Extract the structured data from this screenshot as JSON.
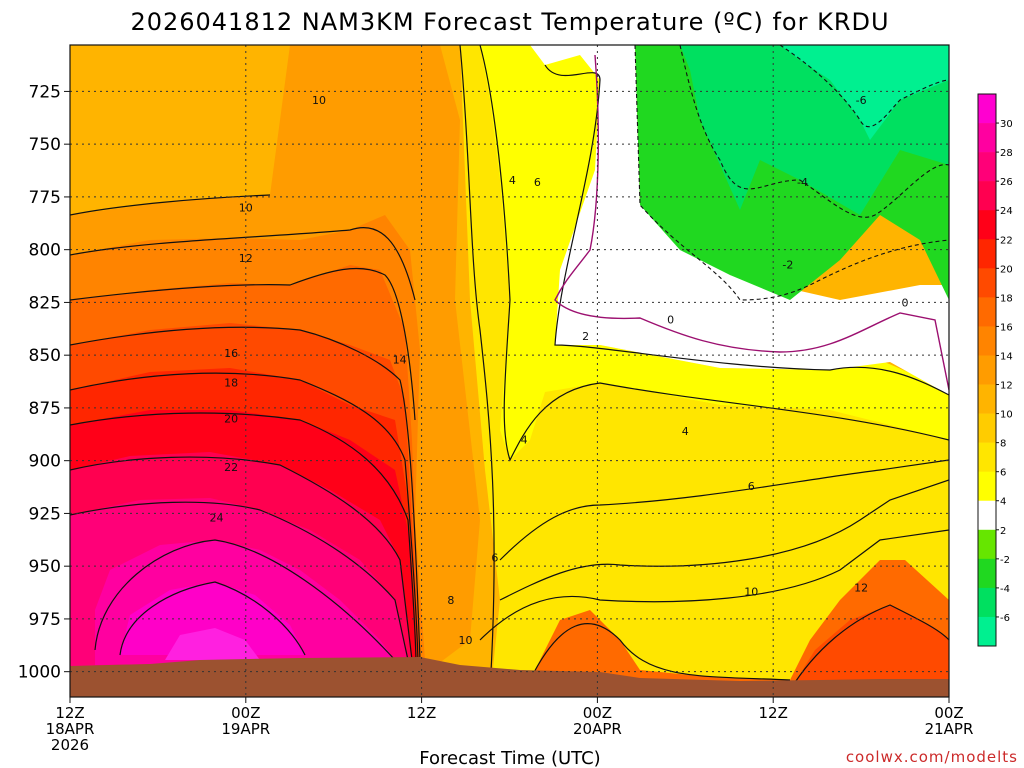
{
  "chart_data": {
    "type": "heatmap",
    "title": "2026041812 NAM3KM Forecast Temperature (ºC) for KRDU",
    "xlabel": "Forecast Time (UTC)",
    "ylabel": "",
    "credit": "coolwx.com/modelts",
    "x_ticks": [
      {
        "hours": 0,
        "lines": [
          "12Z",
          "18APR",
          "2026"
        ]
      },
      {
        "hours": 12,
        "lines": [
          "00Z",
          "19APR"
        ]
      },
      {
        "hours": 24,
        "lines": [
          "12Z"
        ]
      },
      {
        "hours": 36,
        "lines": [
          "00Z",
          "20APR"
        ]
      },
      {
        "hours": 48,
        "lines": [
          "12Z"
        ]
      },
      {
        "hours": 60,
        "lines": [
          "00Z",
          "21APR"
        ]
      }
    ],
    "xlim": [
      0,
      60
    ],
    "y_ticks": [
      725,
      750,
      775,
      800,
      825,
      850,
      875,
      900,
      925,
      950,
      975,
      1000
    ],
    "ylim": [
      1012,
      703
    ],
    "grid": true,
    "colorbar": {
      "levels": [
        -6,
        -4,
        -2,
        2,
        4,
        6,
        8,
        10,
        12,
        14,
        16,
        18,
        20,
        22,
        24,
        26,
        28,
        30
      ],
      "colors": [
        "#00f090",
        "#00e060",
        "#20d820",
        "#66e600",
        "#ffffff",
        "#ffff00",
        "#ffe600",
        "#ffcc00",
        "#ffb400",
        "#ff9c00",
        "#ff8400",
        "#ff6a00",
        "#ff4a00",
        "#ff2600",
        "#ff0018",
        "#ff0050",
        "#ff0078",
        "#ff00a0",
        "#ff00d0"
      ]
    },
    "ground_color": "#9c5230",
    "contour_labels": [
      {
        "text": "10",
        "x": 17.0,
        "y": 729
      },
      {
        "text": "-6",
        "x": 54.0,
        "y": 729
      },
      {
        "text": "4",
        "x": 30.2,
        "y": 767
      },
      {
        "text": "6",
        "x": 31.9,
        "y": 768
      },
      {
        "text": "-4",
        "x": 50.0,
        "y": 768
      },
      {
        "text": "10",
        "x": 12.0,
        "y": 780
      },
      {
        "text": "12",
        "x": 12.0,
        "y": 804
      },
      {
        "text": "-2",
        "x": 49.0,
        "y": 807
      },
      {
        "text": "0",
        "x": 57.0,
        "y": 825
      },
      {
        "text": "0",
        "x": 41.0,
        "y": 833
      },
      {
        "text": "2",
        "x": 35.2,
        "y": 841
      },
      {
        "text": "16",
        "x": 11.0,
        "y": 849
      },
      {
        "text": "14",
        "x": 22.5,
        "y": 852
      },
      {
        "text": "18",
        "x": 11.0,
        "y": 863
      },
      {
        "text": "20",
        "x": 11.0,
        "y": 880
      },
      {
        "text": "4",
        "x": 42.0,
        "y": 886
      },
      {
        "text": "4",
        "x": 31.0,
        "y": 890
      },
      {
        "text": "22",
        "x": 11.0,
        "y": 903
      },
      {
        "text": "6",
        "x": 46.5,
        "y": 912
      },
      {
        "text": "24",
        "x": 10.0,
        "y": 927
      },
      {
        "text": "6",
        "x": 29.0,
        "y": 946
      },
      {
        "text": "10",
        "x": 46.5,
        "y": 962
      },
      {
        "text": "12",
        "x": 54.0,
        "y": 960
      },
      {
        "text": "8",
        "x": 26.0,
        "y": 966
      },
      {
        "text": "10",
        "x": 27.0,
        "y": 985
      }
    ]
  }
}
